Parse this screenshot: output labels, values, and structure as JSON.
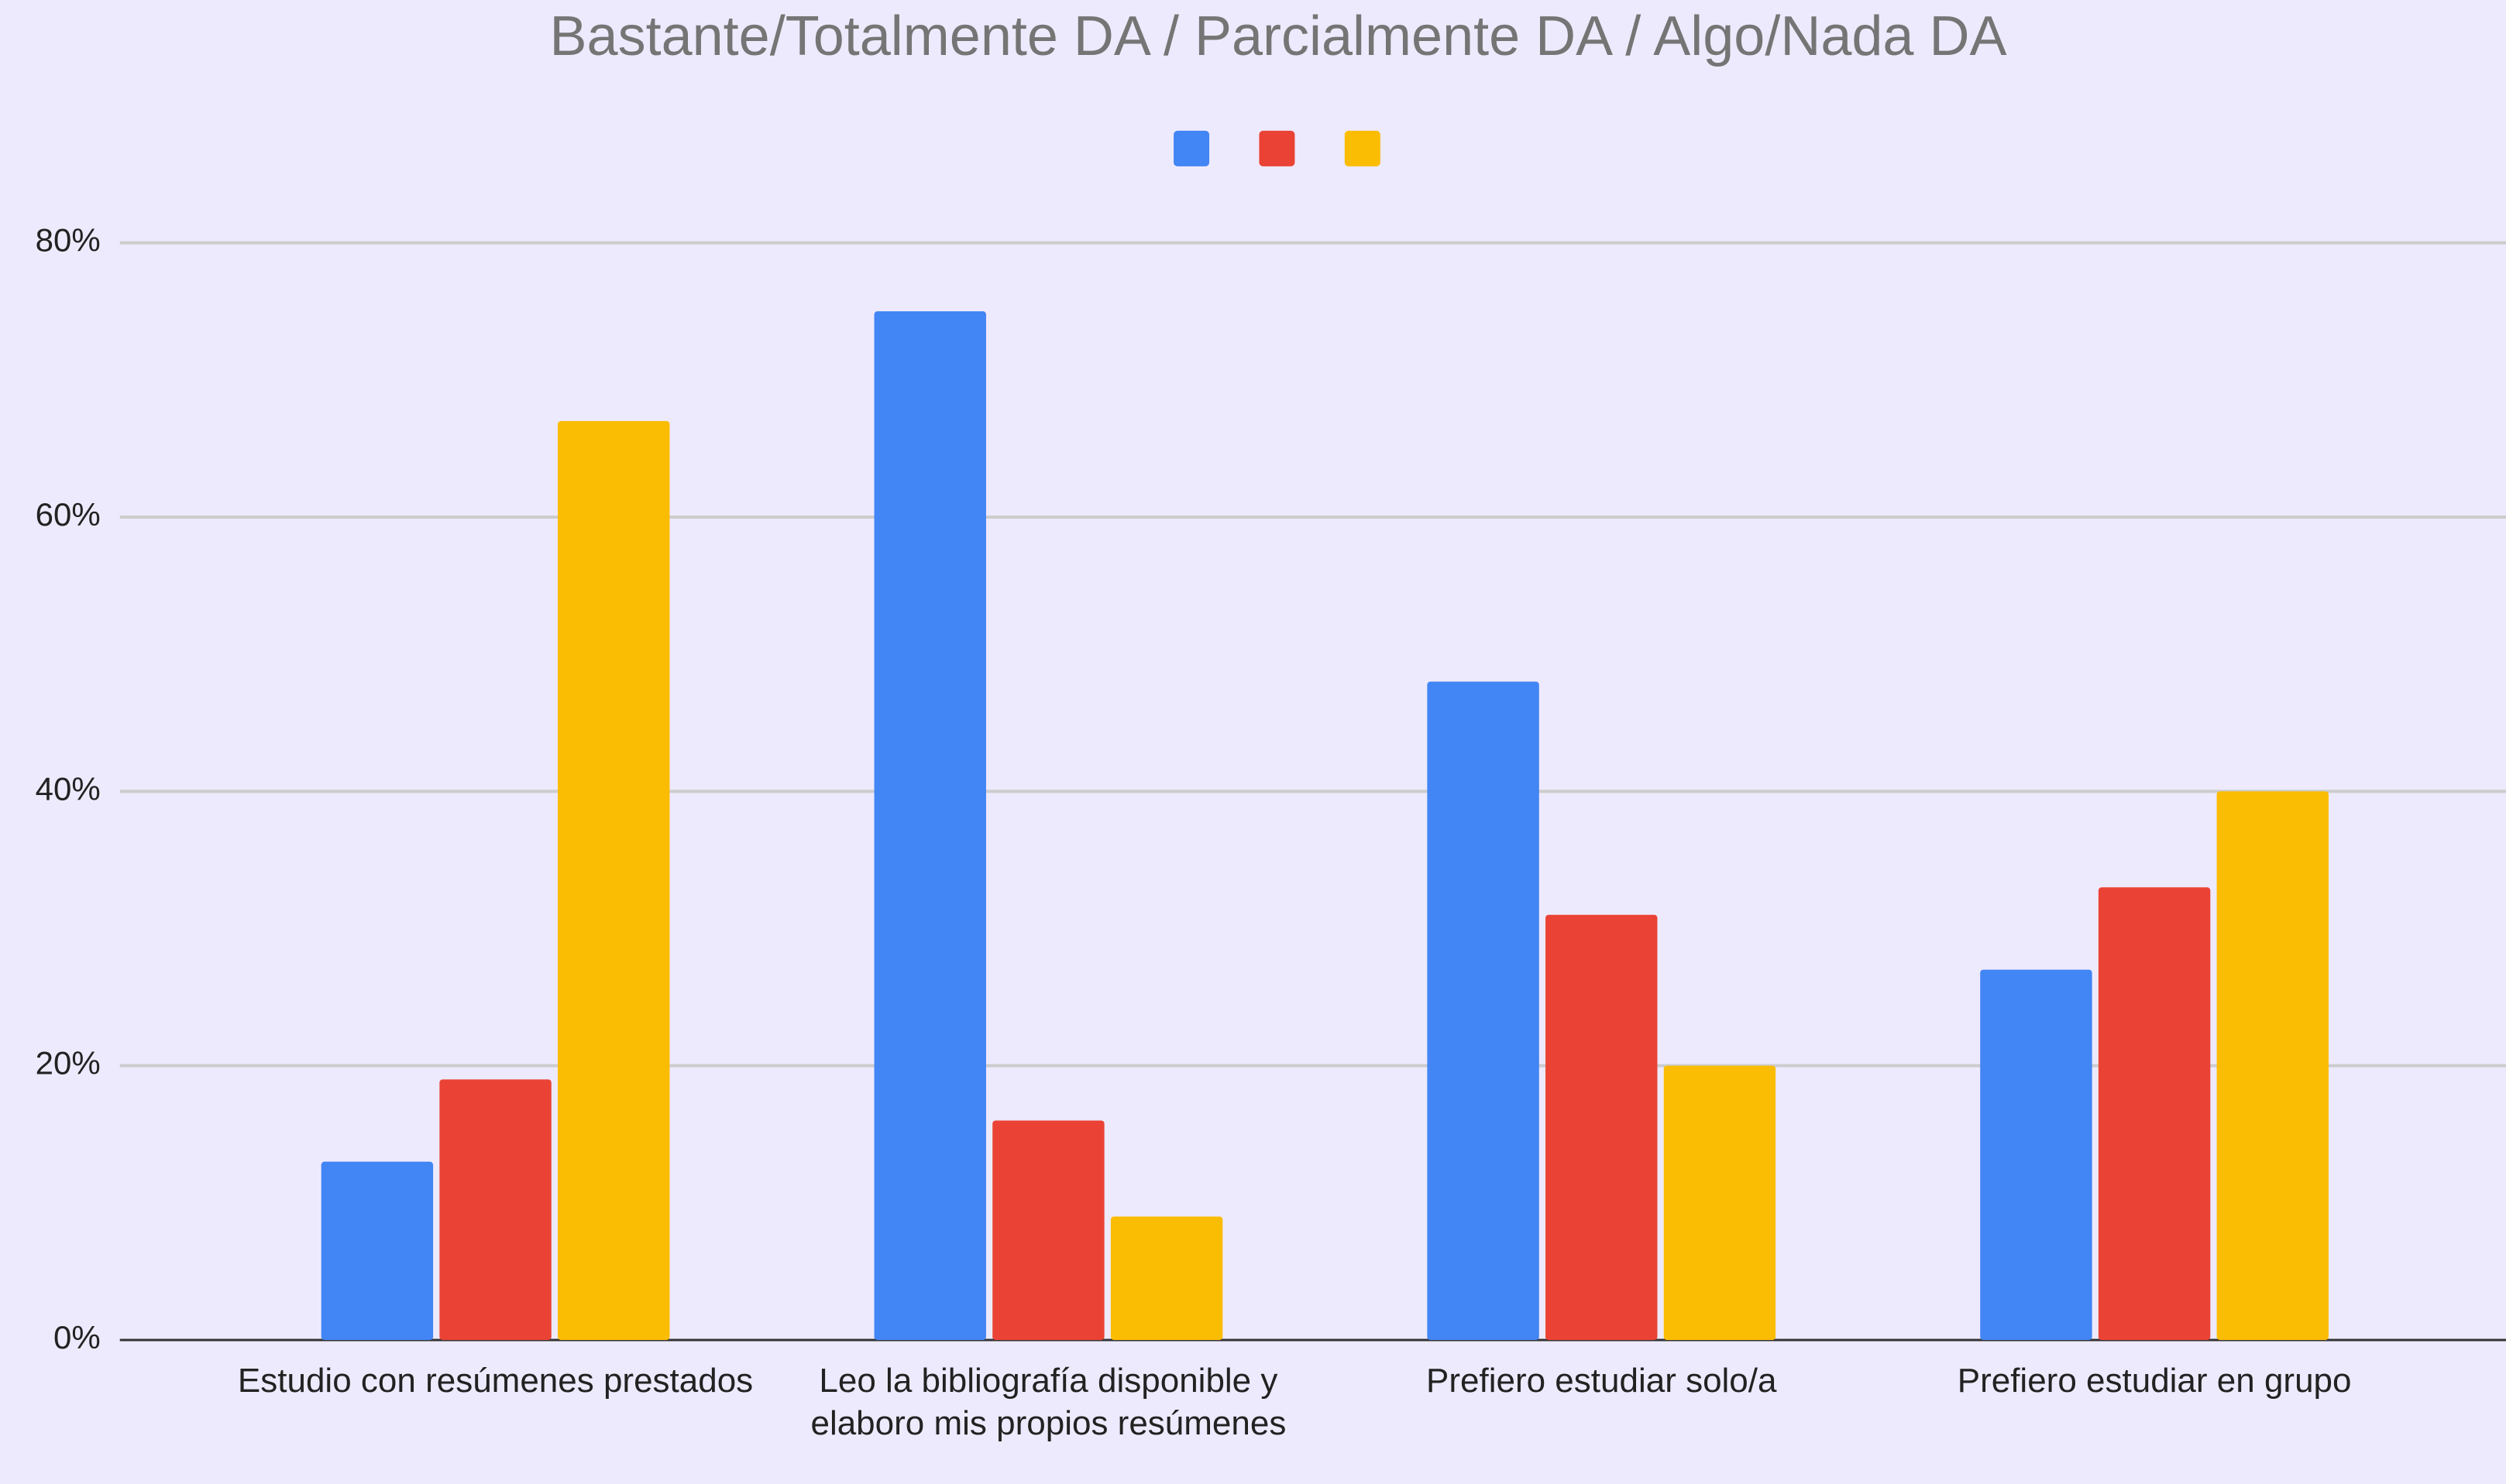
{
  "chart_data": {
    "type": "bar",
    "title": "Bastante/Totalmente DA  /  Parcialmente DA  /  Algo/Nada DA",
    "categories": [
      "Estudio con resúmenes prestados",
      "Leo la bibliografía disponible y elaboro mis propios resúmenes",
      "Prefiero estudiar solo/a",
      "Prefiero estudiar en grupo"
    ],
    "series": [
      {
        "color": "#4285f4",
        "values": [
          13,
          75,
          48,
          27
        ]
      },
      {
        "color": "#ea4335",
        "values": [
          19,
          16,
          31,
          33
        ]
      },
      {
        "color": "#fbbc04",
        "values": [
          67,
          9,
          20,
          40
        ]
      }
    ],
    "ylim": [
      0,
      80
    ],
    "yticks": [
      {
        "value": 0,
        "label": "0%"
      },
      {
        "value": 20,
        "label": "20%"
      },
      {
        "value": 40,
        "label": "40%"
      },
      {
        "value": 60,
        "label": "60%"
      },
      {
        "value": 80,
        "label": "80%"
      }
    ],
    "grid": true,
    "legend": "top"
  }
}
